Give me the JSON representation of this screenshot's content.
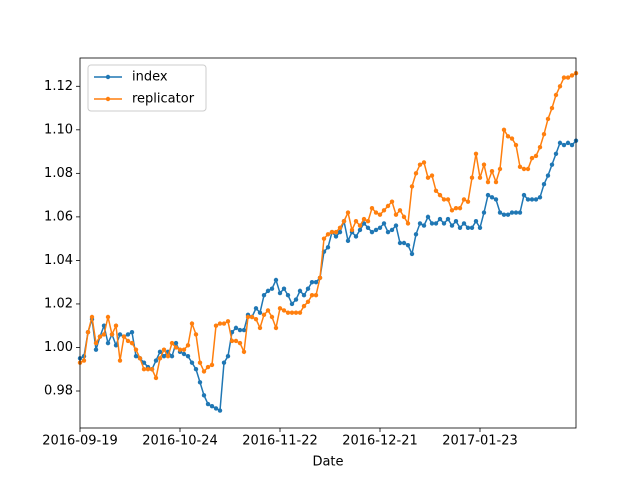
{
  "chart_data": {
    "type": "line",
    "xlabel": "Date",
    "categories": [
      "2016-09-19",
      null,
      null,
      null,
      null,
      null,
      null,
      null,
      null,
      null,
      null,
      null,
      null,
      null,
      null,
      null,
      null,
      null,
      null,
      null,
      null,
      null,
      null,
      null,
      null,
      "2016-10-24",
      null,
      null,
      null,
      null,
      null,
      null,
      null,
      null,
      null,
      null,
      null,
      null,
      null,
      null,
      null,
      null,
      null,
      null,
      null,
      null,
      null,
      null,
      null,
      null,
      "2016-11-22",
      null,
      null,
      null,
      null,
      null,
      null,
      null,
      null,
      null,
      null,
      null,
      null,
      null,
      null,
      null,
      null,
      null,
      null,
      null,
      null,
      null,
      null,
      null,
      null,
      "2016-12-21",
      null,
      null,
      null,
      null,
      null,
      null,
      null,
      null,
      null,
      null,
      null,
      null,
      null,
      null,
      null,
      null,
      null,
      null,
      null,
      null,
      null,
      null,
      null,
      null,
      "2017-01-23",
      null,
      null,
      null,
      null,
      null,
      null,
      null,
      null,
      null,
      null,
      null,
      null,
      null,
      null,
      null,
      null,
      null,
      null,
      null,
      null,
      null,
      null,
      null,
      null
    ],
    "series": [
      {
        "name": "index",
        "color": "#1f77b4",
        "values": [
          0.995,
          0.996,
          1.007,
          1.013,
          0.999,
          1.005,
          1.01,
          1.002,
          1.006,
          1.001,
          1.006,
          1.005,
          1.006,
          1.007,
          0.996,
          0.995,
          0.993,
          0.991,
          0.99,
          0.994,
          0.998,
          0.996,
          0.998,
          0.996,
          1.002,
          0.998,
          0.997,
          0.996,
          0.993,
          0.99,
          0.984,
          0.978,
          0.974,
          0.973,
          0.972,
          0.971,
          0.993,
          0.996,
          1.007,
          1.009,
          1.008,
          1.008,
          1.015,
          1.014,
          1.018,
          1.016,
          1.024,
          1.026,
          1.027,
          1.031,
          1.025,
          1.027,
          1.024,
          1.02,
          1.022,
          1.026,
          1.024,
          1.027,
          1.03,
          1.03,
          1.032,
          1.044,
          1.046,
          1.053,
          1.051,
          1.053,
          1.058,
          1.049,
          1.053,
          1.051,
          1.054,
          1.057,
          1.055,
          1.053,
          1.054,
          1.055,
          1.057,
          1.053,
          1.054,
          1.056,
          1.048,
          1.048,
          1.047,
          1.043,
          1.052,
          1.057,
          1.056,
          1.06,
          1.057,
          1.057,
          1.059,
          1.057,
          1.059,
          1.056,
          1.058,
          1.055,
          1.057,
          1.055,
          1.055,
          1.058,
          1.055,
          1.062,
          1.07,
          1.069,
          1.068,
          1.062,
          1.061,
          1.061,
          1.062,
          1.062,
          1.062,
          1.07,
          1.068,
          1.068,
          1.068,
          1.069,
          1.075,
          1.079,
          1.084,
          1.089,
          1.094,
          1.093,
          1.094,
          1.093,
          1.095
        ]
      },
      {
        "name": "replicator",
        "color": "#ff7f0e",
        "values": [
          0.993,
          0.994,
          1.007,
          1.014,
          1.002,
          1.005,
          1.006,
          1.014,
          1.006,
          1.01,
          0.994,
          1.005,
          1.003,
          1.002,
          0.999,
          0.995,
          0.99,
          0.99,
          0.99,
          0.986,
          0.995,
          0.999,
          0.996,
          1.002,
          1.0,
          0.999,
          0.999,
          1.001,
          1.011,
          1.006,
          0.993,
          0.989,
          0.991,
          0.992,
          1.01,
          1.011,
          1.011,
          1.012,
          1.003,
          1.003,
          1.002,
          0.998,
          1.014,
          1.014,
          1.013,
          1.009,
          1.015,
          1.017,
          1.014,
          1.009,
          1.018,
          1.017,
          1.016,
          1.016,
          1.016,
          1.016,
          1.019,
          1.021,
          1.024,
          1.024,
          1.032,
          1.05,
          1.052,
          1.053,
          1.053,
          1.055,
          1.058,
          1.062,
          1.054,
          1.058,
          1.056,
          1.059,
          1.058,
          1.064,
          1.062,
          1.061,
          1.063,
          1.065,
          1.067,
          1.061,
          1.063,
          1.06,
          1.057,
          1.074,
          1.08,
          1.084,
          1.085,
          1.078,
          1.079,
          1.072,
          1.07,
          1.068,
          1.068,
          1.063,
          1.064,
          1.064,
          1.068,
          1.067,
          1.078,
          1.089,
          1.078,
          1.084,
          1.076,
          1.081,
          1.076,
          1.082,
          1.1,
          1.097,
          1.096,
          1.093,
          1.083,
          1.082,
          1.082,
          1.087,
          1.088,
          1.092,
          1.098,
          1.105,
          1.11,
          1.116,
          1.12,
          1.124,
          1.124,
          1.125,
          1.126
        ]
      }
    ],
    "ylim": [
      0.963,
      1.133
    ],
    "yticks": [
      0.98,
      {
        "value": 1,
        "label": "1.00"
      },
      1.02,
      1.04,
      1.06,
      1.08,
      {
        "value": 1.1,
        "label": "1.10"
      },
      1.12
    ],
    "legend": "upper left",
    "grid": false
  }
}
